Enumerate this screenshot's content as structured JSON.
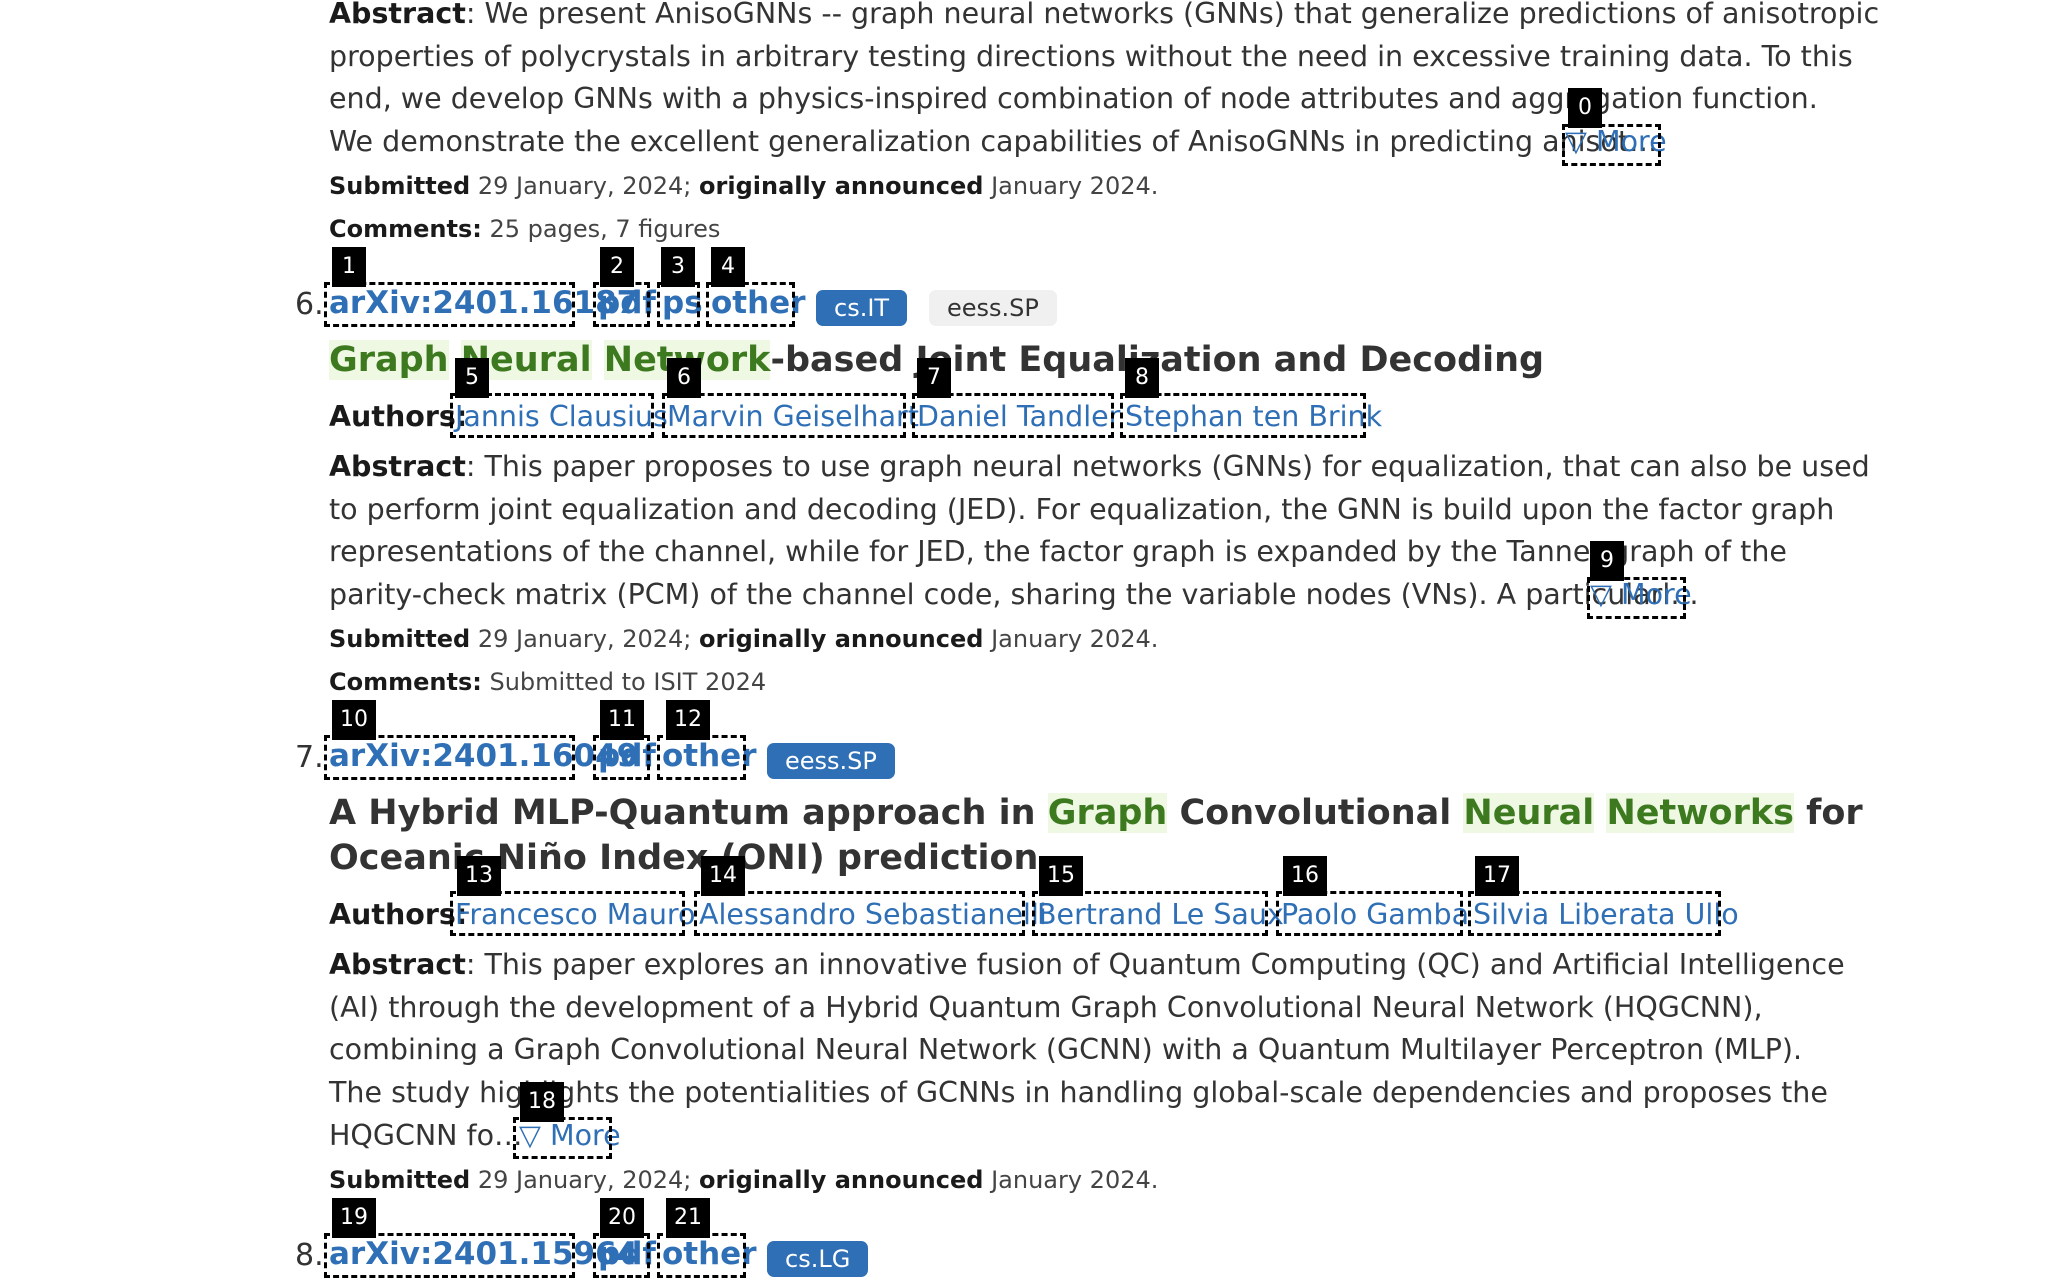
{
  "entry5": {
    "abstract_label": "Abstract",
    "abstract_lines": [
      ": We present AnisoGNNs -- graph neural networks (GNNs) that generalize predictions of anisotropic",
      "properties of polycrystals in arbitrary testing directions without the need in excessive training data. To this",
      "end, we develop GNNs with a physics-inspired combination of node attributes and aggregation function.",
      "We demonstrate the excellent generalization capabilities of AnisoGNNs in predicting anisot…"
    ],
    "more_label": "▽ More",
    "submitted_label": "Submitted",
    "submitted_date": " 29 January, 2024; ",
    "announced_label": "originally announced",
    "announced_date": " January 2024.",
    "comments_label": "Comments:",
    "comments": " 25 pages, 7 figures"
  },
  "entry6": {
    "number": "6.",
    "arxiv_id": "arXiv:2401.16187",
    "formats": [
      "pdf",
      "ps",
      "other"
    ],
    "tags": [
      "cs.IT",
      "eess.SP"
    ],
    "title_parts": [
      "Graph",
      " ",
      "Neural",
      " ",
      "Network",
      "-based Joint Equalization and Decoding"
    ],
    "authors_label": "Authors:",
    "authors": [
      "Jannis Clausius",
      "Marvin Geiselhart",
      "Daniel Tandler",
      "Stephan ten Brink"
    ],
    "abstract_label": "Abstract",
    "abstract_lines": [
      ": This paper proposes to use graph neural networks (GNNs) for equalization, that can also be used",
      "to perform joint equalization and decoding (JED). For equalization, the GNN is build upon the factor graph",
      "representations of the channel, while for JED, the factor graph is expanded by the Tanner graph of the",
      "parity-check matrix (PCM) of the channel code, sharing the variable nodes (VNs). A particularl…"
    ],
    "more_label": "▽ More",
    "submitted_label": "Submitted",
    "submitted_date": " 29 January, 2024; ",
    "announced_label": "originally announced",
    "announced_date": " January 2024.",
    "comments_label": "Comments:",
    "comments": " Submitted to ISIT 2024"
  },
  "entry7": {
    "number": "7.",
    "arxiv_id": "arXiv:2401.16049",
    "formats": [
      "pdf",
      "other"
    ],
    "tags": [
      "eess.SP"
    ],
    "title_line1_parts": [
      "A Hybrid MLP-Quantum approach in ",
      "Graph",
      " Convolutional ",
      "Neural",
      " ",
      "Networks",
      " for"
    ],
    "title_line2": "Oceanic Niño Index (ONI) prediction",
    "authors_label": "Authors:",
    "authors": [
      "Francesco Mauro",
      "Alessandro Sebastianelli",
      "Bertrand Le Saux",
      "Paolo Gamba",
      "Silvia Liberata Ullo"
    ],
    "abstract_label": "Abstract",
    "abstract_lines": [
      ": This paper explores an innovative fusion of Quantum Computing (QC) and Artificial Intelligence",
      "(AI) through the development of a Hybrid Quantum Graph Convolutional Neural Network (HQGCNN),",
      "combining a Graph Convolutional Neural Network (GCNN) with a Quantum Multilayer Perceptron (MLP).",
      "The study highlights the potentialities of GCNNs in handling global-scale dependencies and proposes the",
      "HQGCNN fo…"
    ],
    "more_label": "▽ More",
    "submitted_label": "Submitted",
    "submitted_date": " 29 January, 2024; ",
    "announced_label": "originally announced",
    "announced_date": " January 2024."
  },
  "entry8": {
    "number": "8.",
    "arxiv_id": "arXiv:2401.15964",
    "formats": [
      "pdf",
      "other"
    ],
    "tags": [
      "cs.LG"
    ]
  },
  "som_labels": [
    "0",
    "1",
    "2",
    "3",
    "4",
    "5",
    "6",
    "7",
    "8",
    "9",
    "10",
    "11",
    "12",
    "13",
    "14",
    "15",
    "16",
    "17",
    "18",
    "19",
    "20",
    "21"
  ]
}
